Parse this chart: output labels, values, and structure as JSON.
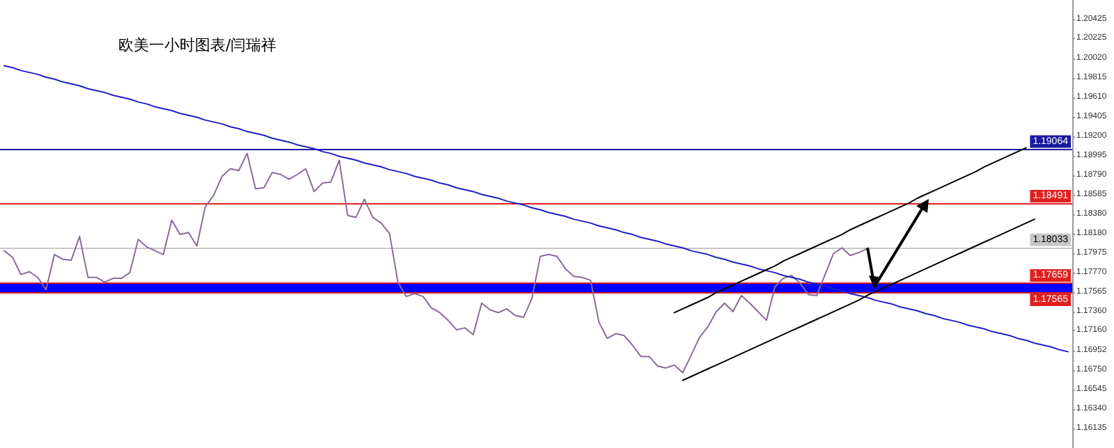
{
  "chart_data": {
    "type": "line",
    "title": "欧美一小时图表/闫瑞祥",
    "categories": [
      null,
      null,
      null,
      null,
      null,
      null,
      null,
      null,
      null,
      null,
      null,
      null,
      null,
      null,
      null,
      null,
      null,
      null,
      null,
      null,
      null,
      null,
      null,
      null,
      null,
      null,
      null,
      null,
      null,
      null,
      null,
      null,
      null,
      null,
      null,
      null,
      null,
      null,
      null,
      null,
      null,
      null,
      null,
      null,
      null,
      null,
      null,
      null,
      null,
      null,
      null,
      null,
      null,
      null,
      null,
      null,
      null,
      null,
      null,
      null,
      null,
      null,
      null,
      null,
      null,
      null,
      null,
      null,
      null,
      null,
      null,
      null,
      null,
      null,
      null,
      null,
      null,
      null,
      null,
      null,
      null,
      null,
      null,
      null,
      null,
      null,
      null,
      null,
      null,
      null,
      null,
      null,
      null,
      null,
      null,
      null,
      null,
      null,
      null,
      null,
      null,
      null,
      null,
      null,
      null,
      null,
      null,
      null,
      null,
      null,
      null,
      null,
      null,
      null,
      null,
      null,
      null,
      null,
      null,
      null,
      null,
      null,
      null,
      null,
      null,
      null,
      null,
      null
    ],
    "ylim": [
      1.1593,
      1.2063
    ],
    "yticks": [
      {
        "value": 1.16135,
        "label": "1.16135"
      },
      {
        "value": 1.1634,
        "label": "1.16340"
      },
      {
        "value": 1.16545,
        "label": "1.16545"
      },
      {
        "value": 1.1675,
        "label": "1.16750"
      },
      {
        "value": 1.16952,
        "label": "1.16952"
      },
      {
        "value": 1.1716,
        "label": "1.17160"
      },
      {
        "value": 1.1736,
        "label": "1.17360"
      },
      {
        "value": 1.17565,
        "label": "1.17565"
      },
      {
        "value": 1.1777,
        "label": "1.17770"
      },
      {
        "value": 1.17975,
        "label": "1.17975"
      },
      {
        "value": 1.1818,
        "label": "1.18180"
      },
      {
        "value": 1.1838,
        "label": "1.18380"
      },
      {
        "value": 1.18585,
        "label": "1.18585"
      },
      {
        "value": 1.1879,
        "label": "1.18790"
      },
      {
        "value": 1.18995,
        "label": "1.18995"
      },
      {
        "value": 1.192,
        "label": "1.19200"
      },
      {
        "value": 1.19405,
        "label": "1.19405"
      },
      {
        "value": 1.1961,
        "label": "1.19610"
      },
      {
        "value": 1.19815,
        "label": "1.19815"
      },
      {
        "value": 1.2002,
        "label": "1.20020"
      },
      {
        "value": 1.20225,
        "label": "1.20225"
      },
      {
        "value": 1.20425,
        "label": "1.20425"
      }
    ],
    "tick_labels": "y",
    "marker": "none",
    "line_style": "solid",
    "series": [
      {
        "color": "#8a6a9a",
        "values": [
          1.18,
          1.1793,
          1.1775,
          1.1778,
          1.1772,
          1.1759,
          1.1796,
          1.1791,
          1.179,
          1.1815,
          1.1772,
          1.1772,
          1.1767,
          1.1771,
          1.1771,
          1.1777,
          1.1812,
          1.1804,
          1.18,
          1.1796,
          1.1832,
          1.1817,
          1.1819,
          1.1805,
          1.1846,
          1.1858,
          1.1878,
          1.1886,
          1.1884,
          1.1902,
          1.1865,
          1.1866,
          1.1882,
          1.188,
          1.1875,
          1.188,
          1.1886,
          1.1862,
          1.1871,
          1.1872,
          1.1895,
          1.1837,
          1.1835,
          1.1854,
          1.1835,
          1.1829,
          1.1818,
          1.1767,
          1.1752,
          1.1755,
          1.1752,
          1.174,
          1.1735,
          1.1727,
          1.1717,
          1.1719,
          1.1712,
          1.1745,
          1.1738,
          1.1735,
          1.1739,
          1.1732,
          1.173,
          1.175,
          1.1794,
          1.1796,
          1.1794,
          1.1781,
          1.1773,
          1.1772,
          1.1769,
          1.1725,
          1.1708,
          1.1713,
          1.1711,
          1.1701,
          1.1689,
          1.1689,
          1.1679,
          1.1677,
          1.168,
          1.1672,
          1.169,
          1.1709,
          1.172,
          1.1736,
          1.1745,
          1.1736,
          1.1753,
          1.1745,
          1.1736,
          1.1727,
          1.1762,
          1.1771,
          1.1774,
          1.1766,
          1.1754,
          1.1753,
          1.1775,
          1.1797,
          1.1803,
          1.1795,
          1.1798,
          1.1802,
          null,
          null,
          null,
          null,
          null,
          null,
          null,
          null,
          null,
          null,
          null,
          null,
          null,
          null,
          null,
          null,
          null,
          null,
          null,
          null,
          null,
          null,
          null,
          null
        ]
      },
      {
        "color": "#1f1fc8",
        "values": [
          1.1994,
          1.1992,
          1.1989,
          1.1987,
          1.1985,
          1.1982,
          1.198,
          1.1977,
          1.1975,
          1.1973,
          1.197,
          1.1968,
          1.1966,
          1.1963,
          1.1961,
          1.1959,
          1.1956,
          1.1954,
          1.1951,
          1.1949,
          1.1947,
          1.1944,
          1.1942,
          1.194,
          1.1937,
          1.1935,
          1.1933,
          1.193,
          1.1928,
          1.1925,
          1.1923,
          1.1921,
          1.1918,
          1.1916,
          1.1914,
          1.1911,
          1.1909,
          1.1907,
          1.1904,
          1.1902,
          1.1899,
          1.1897,
          1.1895,
          1.1892,
          1.189,
          1.1888,
          1.1885,
          1.1883,
          1.1881,
          1.1878,
          1.1876,
          1.1874,
          1.1871,
          1.1869,
          1.1866,
          1.1864,
          1.1862,
          1.1859,
          1.1857,
          1.1855,
          1.1852,
          1.185,
          1.1848,
          1.1845,
          1.1843,
          1.184,
          1.1838,
          1.1836,
          1.1833,
          1.1831,
          1.1829,
          1.1826,
          1.1824,
          1.1822,
          1.1819,
          1.1817,
          1.1814,
          1.1812,
          1.181,
          1.1807,
          1.1805,
          1.1803,
          1.18,
          1.1798,
          1.1796,
          1.1793,
          1.1791,
          1.1788,
          1.1786,
          1.1784,
          1.1781,
          1.1779,
          1.1777,
          1.1774,
          1.1772,
          1.177,
          1.1767,
          1.1765,
          1.1763,
          1.176,
          1.1758,
          1.1755,
          1.1753,
          1.1751,
          1.1748,
          1.1746,
          1.1744,
          1.1741,
          1.1739,
          1.1737,
          1.1734,
          1.1732,
          1.1729,
          1.1727,
          1.1725,
          1.1722,
          1.172,
          1.1718,
          1.1715,
          1.1713,
          1.1711,
          1.1708,
          1.1706,
          1.1703,
          1.1701,
          1.1699,
          1.1696,
          1.1694
        ]
      },
      {
        "color": "#000000",
        "values": [
          null,
          null,
          null,
          null,
          null,
          null,
          null,
          null,
          null,
          null,
          null,
          null,
          null,
          null,
          null,
          null,
          null,
          null,
          null,
          null,
          null,
          null,
          null,
          null,
          null,
          null,
          null,
          null,
          null,
          null,
          null,
          null,
          null,
          null,
          null,
          null,
          null,
          null,
          null,
          null,
          null,
          null,
          null,
          null,
          null,
          null,
          null,
          null,
          null,
          null,
          null,
          null,
          null,
          null,
          null,
          null,
          null,
          null,
          null,
          null,
          null,
          null,
          null,
          null,
          null,
          null,
          null,
          null,
          null,
          null,
          null,
          null,
          null,
          null,
          null,
          null,
          null,
          null,
          null,
          null,
          1.1735,
          1.1739,
          1.1743,
          1.1747,
          1.1751,
          1.1756,
          1.176,
          1.1764,
          1.1768,
          1.1772,
          1.1776,
          1.178,
          1.1784,
          1.1789,
          1.1793,
          1.1797,
          1.1801,
          1.1805,
          1.1809,
          1.1813,
          1.1817,
          1.1822,
          1.1826,
          1.183,
          1.1834,
          1.1838,
          1.1842,
          1.1846,
          1.185,
          1.1855,
          1.1859,
          1.1863,
          1.1867,
          1.1871,
          1.1875,
          1.1879,
          1.1883,
          1.1888,
          1.1892,
          1.1896,
          1.19,
          1.1904,
          1.1908,
          null,
          null,
          null,
          null,
          null
        ]
      },
      {
        "color": "#000000",
        "values": [
          null,
          null,
          null,
          null,
          null,
          null,
          null,
          null,
          null,
          null,
          null,
          null,
          null,
          null,
          null,
          null,
          null,
          null,
          null,
          null,
          null,
          null,
          null,
          null,
          null,
          null,
          null,
          null,
          null,
          null,
          null,
          null,
          null,
          null,
          null,
          null,
          null,
          null,
          null,
          null,
          null,
          null,
          null,
          null,
          null,
          null,
          null,
          null,
          null,
          null,
          null,
          null,
          null,
          null,
          null,
          null,
          null,
          null,
          null,
          null,
          null,
          null,
          null,
          null,
          null,
          null,
          null,
          null,
          null,
          null,
          null,
          null,
          null,
          null,
          null,
          null,
          null,
          null,
          null,
          null,
          null,
          1.1664,
          1.1668,
          1.1672,
          1.1676,
          1.168,
          1.1684,
          1.1688,
          1.1692,
          1.1696,
          1.17,
          1.1704,
          1.1708,
          1.1712,
          1.1716,
          1.172,
          1.1724,
          1.1728,
          1.1732,
          1.1736,
          1.174,
          1.1744,
          1.1748,
          1.1753,
          1.1757,
          1.1761,
          1.1765,
          1.1769,
          1.1773,
          1.1777,
          1.1781,
          1.1785,
          1.1789,
          1.1793,
          1.1797,
          1.1801,
          1.1805,
          1.1809,
          1.1813,
          1.1817,
          1.1821,
          1.1825,
          1.1829,
          1.1833,
          null,
          null,
          null,
          null
        ]
      }
    ],
    "ref_lines": [
      {
        "axis": "y",
        "value": 1.19064,
        "label": "1.19064",
        "color": "#1a1aa0"
      },
      {
        "axis": "y",
        "value": 1.18491,
        "label": "1.18491",
        "color": "#e02020"
      },
      {
        "axis": "y",
        "value": 1.18033,
        "label": "1.18033",
        "color": "#c8c8c8"
      },
      {
        "axis": "y",
        "value": 1.17659,
        "label": "1.17659",
        "color": "#e02020"
      },
      {
        "axis": "y",
        "value": 1.17565,
        "label": "1.17565",
        "color": "#e02020"
      }
    ],
    "bands": [
      {
        "axis": "y",
        "from": 1.17565,
        "to": 1.17659,
        "color": "#0000ff"
      }
    ]
  }
}
